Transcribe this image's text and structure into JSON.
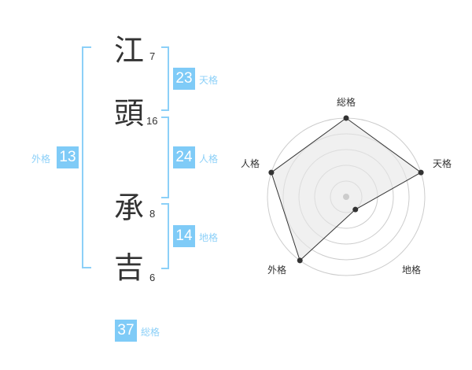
{
  "name": {
    "chars": [
      {
        "char": "江",
        "strokes": "7"
      },
      {
        "char": "頭",
        "strokes": "16"
      },
      {
        "char": "承",
        "strokes": "8"
      },
      {
        "char": "吉",
        "strokes": "6"
      }
    ]
  },
  "fortunes": {
    "tenkaku": {
      "label": "天格",
      "value": "23"
    },
    "jinkaku": {
      "label": "人格",
      "value": "24"
    },
    "chikaku": {
      "label": "地格",
      "value": "14"
    },
    "gaikaku": {
      "label": "外格",
      "value": "13"
    },
    "soukaku": {
      "label": "総格",
      "value": "37"
    }
  },
  "chart_data": {
    "type": "radar",
    "axes": [
      "総格",
      "天格",
      "地格",
      "外格",
      "人格"
    ],
    "values": [
      5,
      5,
      1,
      5,
      5
    ],
    "max": 5,
    "rings": 5
  },
  "colors": {
    "accent": "#7fcbf7",
    "bracket": "#8cd0f8",
    "fill": "#f0f0f0",
    "line": "#333333"
  }
}
